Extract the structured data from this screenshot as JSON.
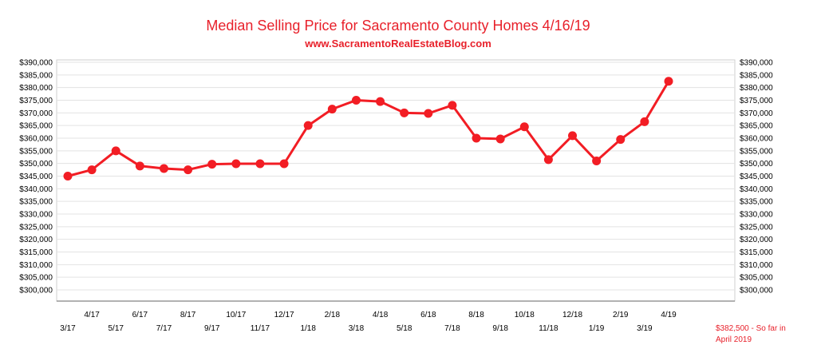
{
  "chart_data": {
    "type": "line",
    "title": "Median Selling Price for Sacramento County Homes 4/16/19",
    "subtitle": "www.SacramentoRealEstateBlog.com",
    "xlabel": "",
    "ylabel": "",
    "ylim": [
      300000,
      390000
    ],
    "grid": true,
    "line_color": "#f21d24",
    "y_tick_labels": [
      "$390,000",
      "$385,000",
      "$380,000",
      "$375,000",
      "$370,000",
      "$365,000",
      "$360,000",
      "$355,000",
      "$350,000",
      "$345,000",
      "$340,000",
      "$335,000",
      "$330,000",
      "$325,000",
      "$320,000",
      "$315,000",
      "$310,000",
      "$305,000",
      "$300,000"
    ],
    "categories": [
      "3/17",
      "4/17",
      "5/17",
      "6/17",
      "7/17",
      "8/17",
      "9/17",
      "10/17",
      "11/17",
      "12/17",
      "1/18",
      "2/18",
      "3/18",
      "4/18",
      "5/18",
      "6/18",
      "7/18",
      "8/18",
      "9/18",
      "10/18",
      "11/18",
      "12/18",
      "1/19",
      "2/19",
      "3/19",
      "4/19"
    ],
    "values": [
      345000,
      347500,
      355000,
      349000,
      348000,
      347500,
      349700,
      349900,
      349900,
      349900,
      365000,
      371500,
      375000,
      374500,
      370000,
      369800,
      373000,
      360000,
      359700,
      364500,
      351500,
      361000,
      351000,
      359500,
      366500,
      382500
    ],
    "annotation": [
      "$382,500  - So far in",
      "April 2019"
    ]
  }
}
